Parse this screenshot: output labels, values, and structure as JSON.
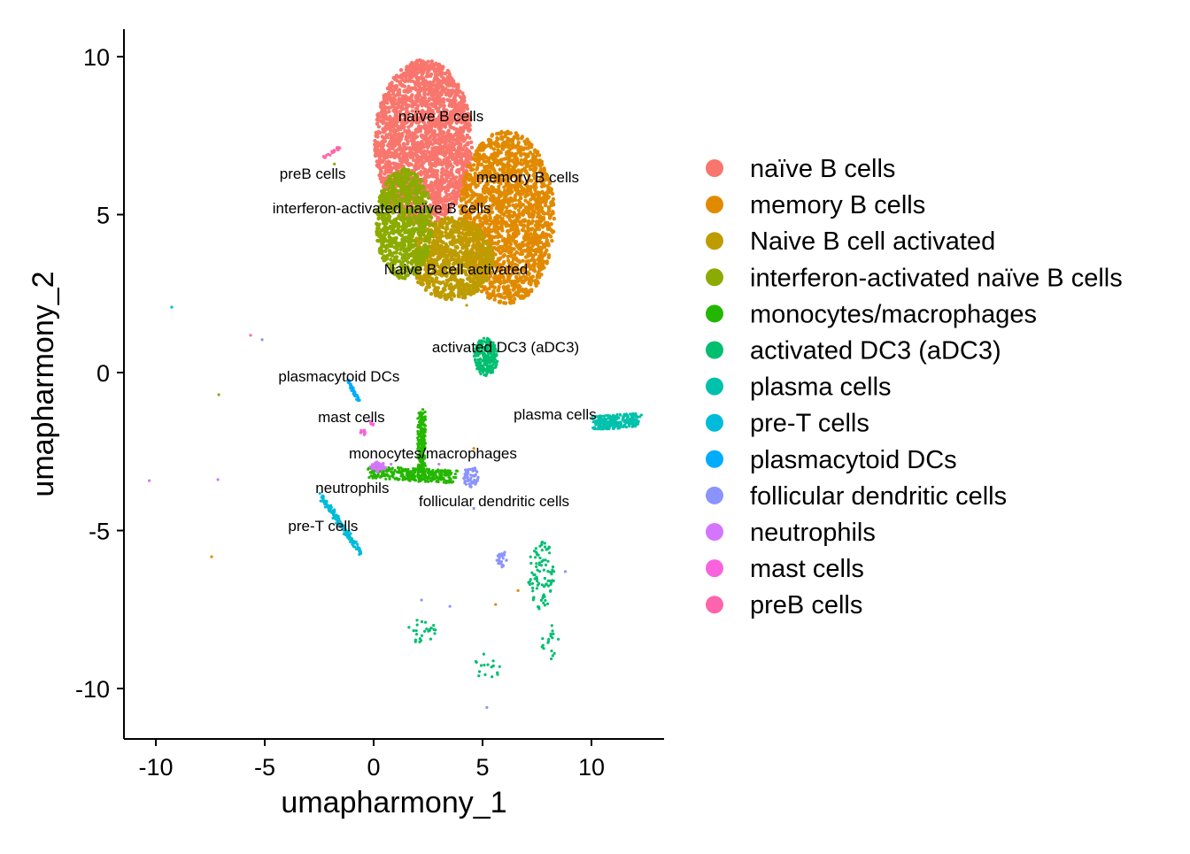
{
  "chart_data": {
    "type": "scatter",
    "xlabel": "umapharmony_1",
    "ylabel": "umapharmony_2",
    "xlim": [
      -11.46,
      13.33
    ],
    "ylim": [
      -11.6,
      10.87
    ],
    "xticks": [
      -10,
      -5,
      0,
      5,
      10
    ],
    "yticks": [
      -10,
      -5,
      0,
      5,
      10
    ],
    "xtick_labels": [
      "-10",
      "-5",
      "0",
      "5",
      "10"
    ],
    "ytick_labels": [
      "-10",
      "-5",
      "0",
      "5",
      "10"
    ],
    "grid": false,
    "legend_position": "right",
    "clusters": [
      {
        "name": "naïve B cells",
        "color": "#F8766D",
        "label_at": [
          3.09,
          8.12
        ],
        "blobs": [
          {
            "kind": "ellipse",
            "cx": 2.3,
            "cy": 7.3,
            "rx": 2.25,
            "ry": 2.6,
            "n": 2200
          }
        ]
      },
      {
        "name": "memory B cells",
        "color": "#E18A00",
        "label_at": [
          7.07,
          6.19
        ],
        "blobs": [
          {
            "kind": "ellipse",
            "cx": 6.1,
            "cy": 4.9,
            "rx": 2.2,
            "ry": 2.75,
            "n": 1800
          }
        ],
        "outliers": [
          [
            -7.44,
            -5.83
          ],
          [
            5.6,
            -7.34
          ],
          [
            6.63,
            -6.9
          ],
          [
            4.6,
            -2.4
          ]
        ]
      },
      {
        "name": "Naive B cell activated",
        "color": "#BE9C00",
        "label_at": [
          3.78,
          3.28
        ],
        "blobs": [
          {
            "kind": "ellipse",
            "cx": 3.6,
            "cy": 3.6,
            "rx": 1.9,
            "ry": 1.3,
            "n": 900
          }
        ],
        "outliers": [
          [
            4.27,
            2.13
          ]
        ]
      },
      {
        "name": "interferon-activated naïve B cells",
        "color": "#8CAB00",
        "label_at": [
          0.37,
          5.21
        ],
        "blobs": [
          {
            "kind": "ellipse",
            "cx": 1.4,
            "cy": 4.7,
            "rx": 1.3,
            "ry": 1.75,
            "n": 800
          }
        ],
        "outliers": [
          [
            -7.11,
            -0.7
          ],
          [
            -1.8,
            6.6
          ]
        ]
      },
      {
        "name": "monocytes/macrophages",
        "color": "#24B700",
        "label_at": [
          2.72,
          -2.55
        ],
        "blobs": [
          {
            "kind": "segment",
            "x1": 2.2,
            "y1": -1.3,
            "x2": 2.2,
            "y2": -3.3,
            "w": 0.18,
            "n": 220
          },
          {
            "kind": "segment",
            "x1": -0.1,
            "y1": -3.15,
            "x2": 3.7,
            "y2": -3.3,
            "w": 0.2,
            "n": 300
          }
        ]
      },
      {
        "name": "activated DC3 (aDC3)",
        "color": "#00BE70",
        "label_at": [
          6.06,
          0.81
        ],
        "blobs": [
          {
            "kind": "ellipse",
            "cx": 5.15,
            "cy": 0.5,
            "rx": 0.55,
            "ry": 0.6,
            "n": 250
          },
          {
            "kind": "ellipse",
            "cx": 7.7,
            "cy": -6.4,
            "rx": 0.6,
            "ry": 1.1,
            "n": 90
          },
          {
            "kind": "ellipse",
            "cx": 2.15,
            "cy": -8.2,
            "rx": 0.7,
            "ry": 0.4,
            "n": 25
          },
          {
            "kind": "ellipse",
            "cx": 5.2,
            "cy": -9.3,
            "rx": 0.6,
            "ry": 0.45,
            "n": 16
          },
          {
            "kind": "ellipse",
            "cx": 8.1,
            "cy": -8.5,
            "rx": 0.5,
            "ry": 0.6,
            "n": 18
          }
        ]
      },
      {
        "name": "plasma cells",
        "color": "#00C1AB",
        "label_at": [
          8.33,
          -1.32
        ],
        "blobs": [
          {
            "kind": "segment",
            "x1": 10.2,
            "y1": -1.6,
            "x2": 12.1,
            "y2": -1.5,
            "w": 0.22,
            "n": 260
          }
        ]
      },
      {
        "name": "pre-T cells",
        "color": "#00BBDA",
        "label_at": [
          -2.32,
          -4.85
        ],
        "blobs": [
          {
            "kind": "segment",
            "x1": -2.44,
            "y1": -3.89,
            "x2": -0.6,
            "y2": -5.7,
            "w": 0.1,
            "n": 160
          }
        ],
        "outliers": [
          [
            -9.27,
            2.07
          ]
        ]
      },
      {
        "name": "plasmacytoid DCs",
        "color": "#00ACFC",
        "label_at": [
          -1.59,
          -0.11
        ],
        "blobs": [
          {
            "kind": "segment",
            "x1": -1.18,
            "y1": -0.25,
            "x2": -0.69,
            "y2": -0.87,
            "w": 0.06,
            "n": 50
          }
        ]
      },
      {
        "name": "follicular dendritic cells",
        "color": "#8B93FF",
        "label_at": [
          5.53,
          -4.06
        ],
        "blobs": [
          {
            "kind": "ellipse",
            "cx": 4.45,
            "cy": -3.3,
            "rx": 0.35,
            "ry": 0.35,
            "n": 60
          },
          {
            "kind": "ellipse",
            "cx": 5.9,
            "cy": -5.9,
            "rx": 0.25,
            "ry": 0.25,
            "n": 25
          }
        ],
        "outliers": [
          [
            -5.12,
            1.04
          ],
          [
            5.2,
            -10.6
          ],
          [
            4.6,
            -4.3
          ],
          [
            2.2,
            -7.2
          ],
          [
            3.5,
            -7.4
          ],
          [
            8.8,
            -6.3
          ]
        ]
      },
      {
        "name": "neutrophils",
        "color": "#D575FE",
        "label_at": [
          -0.98,
          -3.64
        ],
        "blobs": [
          {
            "kind": "ellipse",
            "cx": 0.2,
            "cy": -3.0,
            "rx": 0.35,
            "ry": 0.18,
            "n": 50
          }
        ],
        "outliers": [
          [
            -10.3,
            -3.42
          ],
          [
            -7.15,
            -3.39
          ],
          [
            0.8,
            -2.9
          ],
          [
            3.0,
            -2.9
          ]
        ]
      },
      {
        "name": "mast cells",
        "color": "#F962DD",
        "label_at": [
          -1.02,
          -1.4
        ],
        "blobs": [
          {
            "kind": "ellipse",
            "cx": -0.5,
            "cy": -1.9,
            "rx": 0.12,
            "ry": 0.1,
            "n": 15
          },
          {
            "kind": "ellipse",
            "cx": -0.1,
            "cy": -1.6,
            "rx": 0.1,
            "ry": 0.08,
            "n": 8
          }
        ]
      },
      {
        "name": "preB cells",
        "color": "#FF65AC",
        "label_at": [
          -2.8,
          6.3
        ],
        "blobs": [
          {
            "kind": "segment",
            "x1": -2.3,
            "y1": 6.8,
            "x2": -1.4,
            "y2": 7.2,
            "w": 0.06,
            "n": 20
          }
        ],
        "outliers": [
          [
            -5.65,
            1.18
          ]
        ]
      }
    ]
  }
}
